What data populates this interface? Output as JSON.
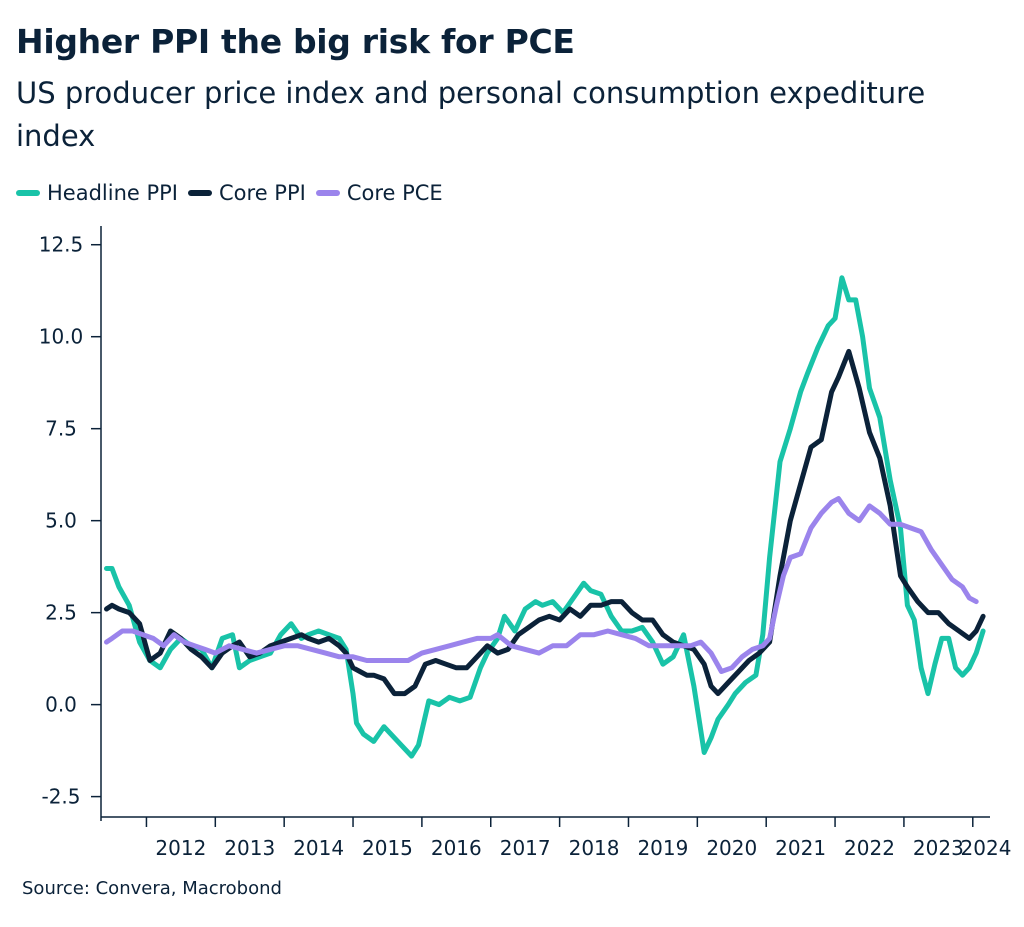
{
  "title": "Higher PPI the big risk for PCE",
  "subtitle": "US producer price index and personal consumption expediture index",
  "source": "Source: Convera, Macrobond",
  "colors": {
    "headline_ppi": "#19c3a8",
    "core_ppi": "#0b2239",
    "core_pce": "#9b84ec",
    "axis": "#0b2239"
  },
  "chart_data": {
    "type": "line",
    "title": "Higher PPI the big risk for PCE",
    "xlabel": "",
    "ylabel": "",
    "xlim": [
      2011.34,
      2024.25
    ],
    "ylim": [
      -3.0,
      12.9
    ],
    "y_ticks": [
      -2.5,
      0.0,
      2.5,
      5.0,
      7.5,
      10.0,
      12.5
    ],
    "y_tick_labels": [
      "-2.5",
      "0.0",
      "2.5",
      "5.0",
      "7.5",
      "10.0",
      "12.5"
    ],
    "x_tick_labels": [
      "2012",
      "2013",
      "2014",
      "2015",
      "2016",
      "2017",
      "2018",
      "2019",
      "2020",
      "2021",
      "2022",
      "2023",
      "2024"
    ],
    "legend": [
      "Headline PPI",
      "Core PPI",
      "Core PCE"
    ],
    "legend_position": "top-left",
    "grid": false,
    "series": [
      {
        "name": "Headline PPI",
        "color_key": "headline_ppi",
        "x": [
          2011.42,
          2011.5,
          2011.6,
          2011.75,
          2011.9,
          2012.05,
          2012.2,
          2012.35,
          2012.5,
          2012.65,
          2012.8,
          2012.95,
          2013.1,
          2013.25,
          2013.35,
          2013.5,
          2013.65,
          2013.8,
          2013.95,
          2014.1,
          2014.25,
          2014.35,
          2014.5,
          2014.65,
          2014.8,
          2014.9,
          2015.0,
          2015.05,
          2015.15,
          2015.3,
          2015.45,
          2015.55,
          2015.7,
          2015.85,
          2015.95,
          2016.1,
          2016.25,
          2016.4,
          2016.55,
          2016.7,
          2016.85,
          2016.95,
          2017.1,
          2017.2,
          2017.35,
          2017.5,
          2017.65,
          2017.75,
          2017.9,
          2018.05,
          2018.2,
          2018.35,
          2018.45,
          2018.6,
          2018.75,
          2018.9,
          2019.05,
          2019.2,
          2019.35,
          2019.5,
          2019.65,
          2019.8,
          2019.95,
          2020.1,
          2020.2,
          2020.3,
          2020.45,
          2020.55,
          2020.7,
          2020.85,
          2020.95,
          2021.05,
          2021.2,
          2021.35,
          2021.5,
          2021.6,
          2021.75,
          2021.9,
          2022.0,
          2022.1,
          2022.2,
          2022.3,
          2022.4,
          2022.5,
          2022.65,
          2022.8,
          2022.95,
          2023.05,
          2023.15,
          2023.25,
          2023.35,
          2023.45,
          2023.55,
          2023.65,
          2023.75,
          2023.85,
          2023.95,
          2024.05,
          2024.15
        ],
        "values": [
          3.7,
          3.7,
          3.2,
          2.7,
          1.7,
          1.2,
          1.0,
          1.5,
          1.8,
          1.6,
          1.5,
          1.0,
          1.8,
          1.9,
          1.0,
          1.2,
          1.3,
          1.4,
          1.9,
          2.2,
          1.8,
          1.9,
          2.0,
          1.9,
          1.8,
          1.5,
          0.3,
          -0.5,
          -0.8,
          -1.0,
          -0.6,
          -0.8,
          -1.1,
          -1.4,
          -1.1,
          0.1,
          0.0,
          0.2,
          0.1,
          0.2,
          1.0,
          1.4,
          1.8,
          2.4,
          2.0,
          2.6,
          2.8,
          2.7,
          2.8,
          2.5,
          2.9,
          3.3,
          3.1,
          3.0,
          2.4,
          2.0,
          2.0,
          2.1,
          1.7,
          1.1,
          1.3,
          1.9,
          0.5,
          -1.3,
          -0.9,
          -0.4,
          0.0,
          0.3,
          0.6,
          0.8,
          1.9,
          4.0,
          6.6,
          7.5,
          8.5,
          9.0,
          9.7,
          10.3,
          10.5,
          11.6,
          11.0,
          11.0,
          10.0,
          8.6,
          7.8,
          6.1,
          4.8,
          2.7,
          2.3,
          1.0,
          0.3,
          1.1,
          1.8,
          1.8,
          1.0,
          0.8,
          1.0,
          1.4,
          2.0
        ]
      },
      {
        "name": "Core PPI",
        "color_key": "core_ppi",
        "x": [
          2011.42,
          2011.5,
          2011.6,
          2011.75,
          2011.9,
          2012.05,
          2012.2,
          2012.35,
          2012.5,
          2012.65,
          2012.8,
          2012.95,
          2013.1,
          2013.25,
          2013.35,
          2013.5,
          2013.65,
          2013.8,
          2013.95,
          2014.1,
          2014.25,
          2014.35,
          2014.5,
          2014.65,
          2014.8,
          2014.9,
          2015.0,
          2015.1,
          2015.2,
          2015.3,
          2015.45,
          2015.6,
          2015.75,
          2015.9,
          2016.05,
          2016.2,
          2016.35,
          2016.5,
          2016.65,
          2016.8,
          2016.95,
          2017.1,
          2017.25,
          2017.4,
          2017.55,
          2017.7,
          2017.85,
          2018.0,
          2018.15,
          2018.3,
          2018.45,
          2018.6,
          2018.75,
          2018.9,
          2019.05,
          2019.2,
          2019.35,
          2019.5,
          2019.65,
          2019.8,
          2019.95,
          2020.1,
          2020.2,
          2020.3,
          2020.45,
          2020.6,
          2020.75,
          2020.9,
          2021.05,
          2021.2,
          2021.35,
          2021.5,
          2021.65,
          2021.8,
          2021.95,
          2022.05,
          2022.2,
          2022.35,
          2022.5,
          2022.65,
          2022.8,
          2022.95,
          2023.05,
          2023.2,
          2023.35,
          2023.5,
          2023.65,
          2023.8,
          2023.95,
          2024.05,
          2024.15
        ],
        "values": [
          2.6,
          2.7,
          2.6,
          2.5,
          2.2,
          1.2,
          1.4,
          2.0,
          1.8,
          1.5,
          1.3,
          1.0,
          1.4,
          1.6,
          1.7,
          1.3,
          1.4,
          1.6,
          1.7,
          1.8,
          1.9,
          1.8,
          1.7,
          1.8,
          1.6,
          1.4,
          1.0,
          0.9,
          0.8,
          0.8,
          0.7,
          0.3,
          0.3,
          0.5,
          1.1,
          1.2,
          1.1,
          1.0,
          1.0,
          1.3,
          1.6,
          1.4,
          1.5,
          1.9,
          2.1,
          2.3,
          2.4,
          2.3,
          2.6,
          2.4,
          2.7,
          2.7,
          2.8,
          2.8,
          2.5,
          2.3,
          2.3,
          1.9,
          1.7,
          1.6,
          1.5,
          1.1,
          0.5,
          0.3,
          0.6,
          0.9,
          1.2,
          1.4,
          1.7,
          3.5,
          5.0,
          6.0,
          7.0,
          7.2,
          8.5,
          8.9,
          9.6,
          8.6,
          7.4,
          6.7,
          5.4,
          3.5,
          3.2,
          2.8,
          2.5,
          2.5,
          2.2,
          2.0,
          1.8,
          2.0,
          2.4
        ]
      },
      {
        "name": "Core PCE",
        "color_key": "core_pce",
        "x": [
          2011.42,
          2011.5,
          2011.65,
          2011.8,
          2011.95,
          2012.1,
          2012.25,
          2012.4,
          2012.55,
          2012.7,
          2012.85,
          2013.0,
          2013.2,
          2013.4,
          2013.6,
          2013.8,
          2014.0,
          2014.2,
          2014.4,
          2014.6,
          2014.8,
          2015.0,
          2015.2,
          2015.4,
          2015.6,
          2015.8,
          2016.0,
          2016.2,
          2016.4,
          2016.6,
          2016.8,
          2017.0,
          2017.1,
          2017.3,
          2017.5,
          2017.7,
          2017.9,
          2018.1,
          2018.3,
          2018.5,
          2018.7,
          2018.9,
          2019.1,
          2019.3,
          2019.5,
          2019.7,
          2019.9,
          2020.05,
          2020.2,
          2020.35,
          2020.5,
          2020.65,
          2020.8,
          2020.95,
          2021.05,
          2021.15,
          2021.25,
          2021.35,
          2021.5,
          2021.65,
          2021.8,
          2021.95,
          2022.05,
          2022.2,
          2022.35,
          2022.5,
          2022.65,
          2022.8,
          2022.95,
          2023.1,
          2023.25,
          2023.4,
          2023.55,
          2023.7,
          2023.85,
          2023.95,
          2024.05
        ],
        "values": [
          1.7,
          1.8,
          2.0,
          2.0,
          1.9,
          1.8,
          1.6,
          1.9,
          1.7,
          1.6,
          1.5,
          1.4,
          1.6,
          1.5,
          1.4,
          1.5,
          1.6,
          1.6,
          1.5,
          1.4,
          1.3,
          1.3,
          1.2,
          1.2,
          1.2,
          1.2,
          1.4,
          1.5,
          1.6,
          1.7,
          1.8,
          1.8,
          1.9,
          1.6,
          1.5,
          1.4,
          1.6,
          1.6,
          1.9,
          1.9,
          2.0,
          1.9,
          1.8,
          1.6,
          1.6,
          1.6,
          1.6,
          1.7,
          1.4,
          0.9,
          1.0,
          1.3,
          1.5,
          1.6,
          1.8,
          2.7,
          3.5,
          4.0,
          4.1,
          4.8,
          5.2,
          5.5,
          5.6,
          5.2,
          5.0,
          5.4,
          5.2,
          4.9,
          4.9,
          4.8,
          4.7,
          4.2,
          3.8,
          3.4,
          3.2,
          2.9,
          2.8
        ]
      }
    ]
  }
}
